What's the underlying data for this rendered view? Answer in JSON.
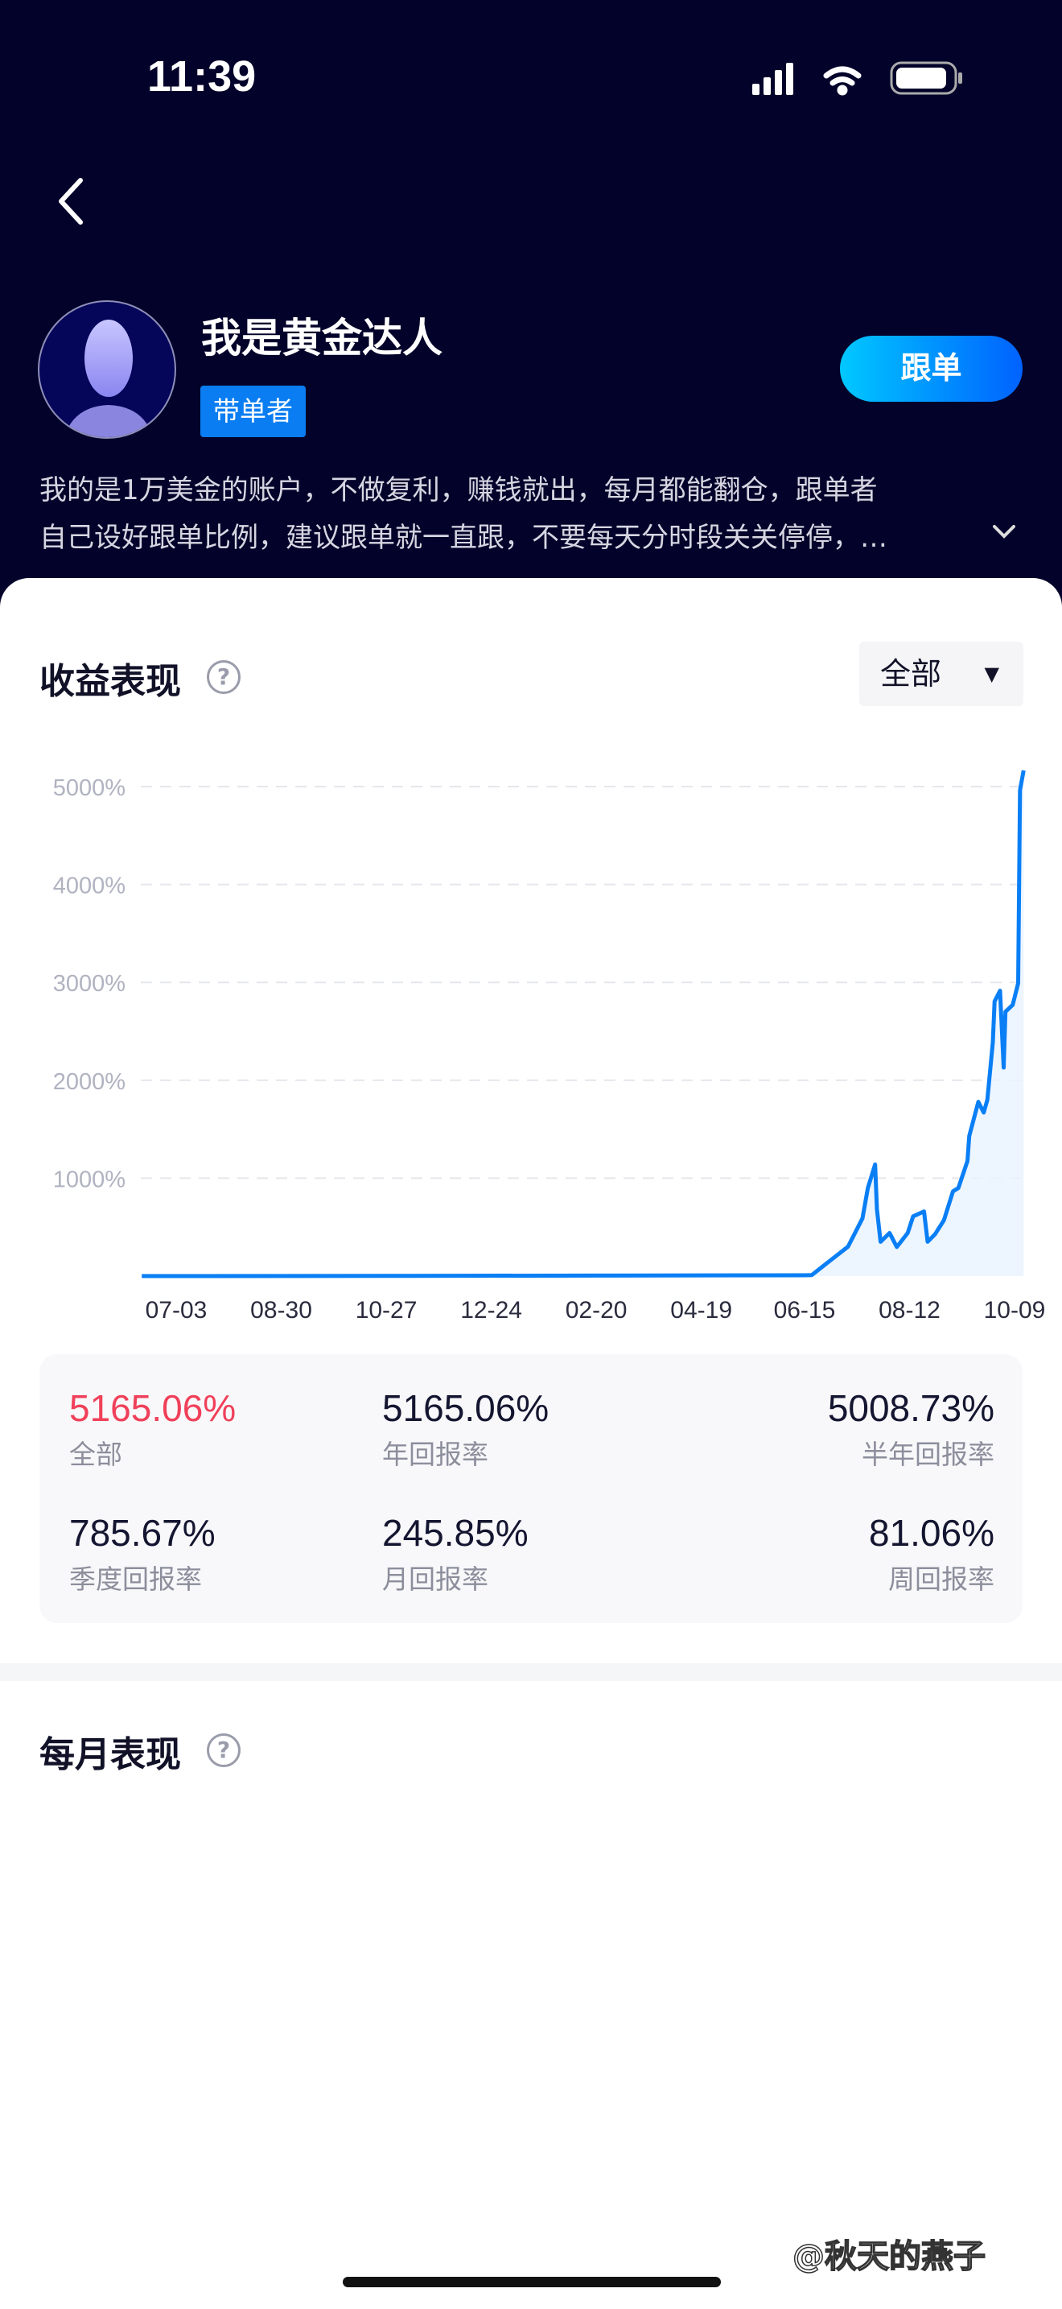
{
  "status_bar": {
    "time": "11:39"
  },
  "profile": {
    "name": "我是黄金达人",
    "badge": "带单者",
    "follow_button": "跟单",
    "description_line1": "我的是1万美金的账户，不做复利，赚钱就出，每月都能翻仓，跟单者",
    "description_line2": "自己设好跟单比例，建议跟单就一直跟，不要每天分时段关关停停，…"
  },
  "performance": {
    "title": "收益表现",
    "help_icon": "?",
    "range_select": "全部"
  },
  "chart_data": {
    "type": "area",
    "x_ticks": [
      "07-03",
      "08-30",
      "10-27",
      "12-24",
      "02-20",
      "04-19",
      "06-15",
      "08-12",
      "10-09"
    ],
    "y_ticks": [
      "1000%",
      "2000%",
      "3000%",
      "4000%",
      "5000%"
    ],
    "ylim": [
      0,
      5000
    ],
    "grid": true,
    "line_color": "#0a7ff5",
    "points": [
      [
        "06-14",
        0
      ],
      [
        "10-27",
        2
      ],
      [
        "02-20",
        5
      ],
      [
        "06-15",
        8
      ],
      [
        "06-19",
        10
      ],
      [
        "06-30",
        170
      ],
      [
        "07-09",
        300
      ],
      [
        "07-17",
        590
      ],
      [
        "07-20",
        900
      ],
      [
        "07-24",
        1140
      ],
      [
        "07-25",
        680
      ],
      [
        "07-27",
        350
      ],
      [
        "08-01",
        440
      ],
      [
        "08-05",
        297
      ],
      [
        "08-11",
        440
      ],
      [
        "08-14",
        610
      ],
      [
        "08-20",
        660
      ],
      [
        "08-22",
        350
      ],
      [
        "08-26",
        425
      ],
      [
        "08-31",
        570
      ],
      [
        "09-05",
        865
      ],
      [
        "09-08",
        900
      ],
      [
        "09-13",
        1175
      ],
      [
        "09-14",
        1430
      ],
      [
        "09-19",
        1780
      ],
      [
        "09-22",
        1670
      ],
      [
        "09-24",
        1800
      ],
      [
        "09-27",
        2385
      ],
      [
        "09-28",
        2805
      ],
      [
        "10-01",
        2915
      ],
      [
        "10-03",
        2130
      ],
      [
        "10-04",
        2700
      ],
      [
        "10-08",
        2770
      ],
      [
        "10-11",
        2990
      ],
      [
        "10-12",
        4965
      ],
      [
        "10-14",
        5165
      ]
    ]
  },
  "stats": [
    {
      "value": "5165.06%",
      "label": "全部",
      "highlight": "#f0405a"
    },
    {
      "value": "5165.06%",
      "label": "年回报率"
    },
    {
      "value": "5008.73%",
      "label": "半年回报率"
    },
    {
      "value": "785.67%",
      "label": "季度回报率"
    },
    {
      "value": "245.85%",
      "label": "月回报率"
    },
    {
      "value": "81.06%",
      "label": "周回报率"
    }
  ],
  "monthly": {
    "title": "每月表现",
    "help_icon": "?"
  },
  "watermark": "@秋天的燕子"
}
